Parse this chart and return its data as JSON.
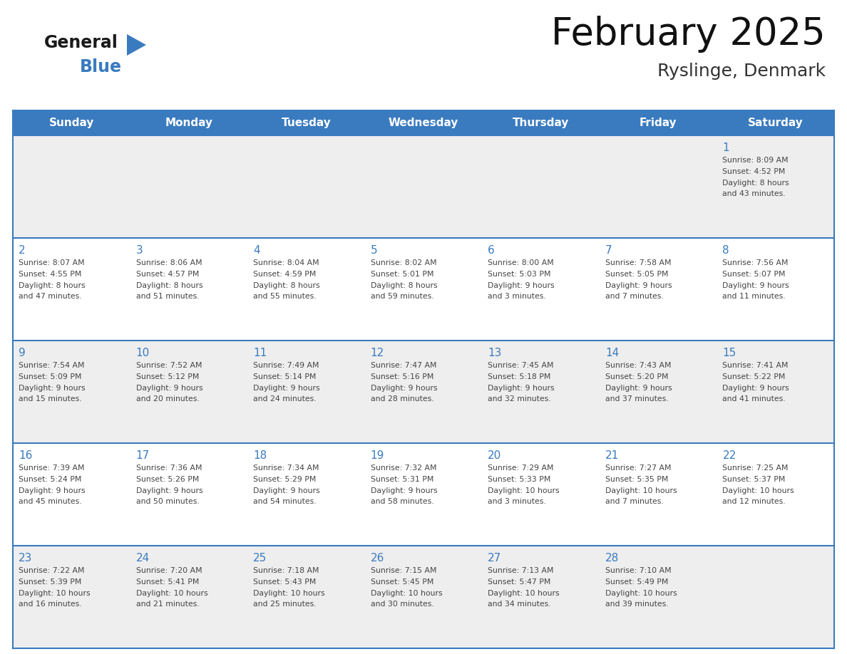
{
  "title": "February 2025",
  "subtitle": "Ryslinge, Denmark",
  "header_color": "#3A7BBF",
  "header_text_color": "#FFFFFF",
  "day_names": [
    "Sunday",
    "Monday",
    "Tuesday",
    "Wednesday",
    "Thursday",
    "Friday",
    "Saturday"
  ],
  "background_color": "#FFFFFF",
  "cell_bg_row0": "#F0F0F0",
  "cell_bg_row1": "#FFFFFF",
  "cell_bg_row2": "#F0F0F0",
  "cell_bg_row3": "#FFFFFF",
  "cell_bg_row4": "#F0F0F0",
  "border_color": "#3A7BBF",
  "date_color": "#3A7BBF",
  "text_color": "#444444",
  "days": [
    {
      "day": 1,
      "col": 6,
      "row": 0,
      "sunrise": "8:09 AM",
      "sunset": "4:52 PM",
      "daylight": "8 hours and 43 minutes."
    },
    {
      "day": 2,
      "col": 0,
      "row": 1,
      "sunrise": "8:07 AM",
      "sunset": "4:55 PM",
      "daylight": "8 hours and 47 minutes."
    },
    {
      "day": 3,
      "col": 1,
      "row": 1,
      "sunrise": "8:06 AM",
      "sunset": "4:57 PM",
      "daylight": "8 hours and 51 minutes."
    },
    {
      "day": 4,
      "col": 2,
      "row": 1,
      "sunrise": "8:04 AM",
      "sunset": "4:59 PM",
      "daylight": "8 hours and 55 minutes."
    },
    {
      "day": 5,
      "col": 3,
      "row": 1,
      "sunrise": "8:02 AM",
      "sunset": "5:01 PM",
      "daylight": "8 hours and 59 minutes."
    },
    {
      "day": 6,
      "col": 4,
      "row": 1,
      "sunrise": "8:00 AM",
      "sunset": "5:03 PM",
      "daylight": "9 hours and 3 minutes."
    },
    {
      "day": 7,
      "col": 5,
      "row": 1,
      "sunrise": "7:58 AM",
      "sunset": "5:05 PM",
      "daylight": "9 hours and 7 minutes."
    },
    {
      "day": 8,
      "col": 6,
      "row": 1,
      "sunrise": "7:56 AM",
      "sunset": "5:07 PM",
      "daylight": "9 hours and 11 minutes."
    },
    {
      "day": 9,
      "col": 0,
      "row": 2,
      "sunrise": "7:54 AM",
      "sunset": "5:09 PM",
      "daylight": "9 hours and 15 minutes."
    },
    {
      "day": 10,
      "col": 1,
      "row": 2,
      "sunrise": "7:52 AM",
      "sunset": "5:12 PM",
      "daylight": "9 hours and 20 minutes."
    },
    {
      "day": 11,
      "col": 2,
      "row": 2,
      "sunrise": "7:49 AM",
      "sunset": "5:14 PM",
      "daylight": "9 hours and 24 minutes."
    },
    {
      "day": 12,
      "col": 3,
      "row": 2,
      "sunrise": "7:47 AM",
      "sunset": "5:16 PM",
      "daylight": "9 hours and 28 minutes."
    },
    {
      "day": 13,
      "col": 4,
      "row": 2,
      "sunrise": "7:45 AM",
      "sunset": "5:18 PM",
      "daylight": "9 hours and 32 minutes."
    },
    {
      "day": 14,
      "col": 5,
      "row": 2,
      "sunrise": "7:43 AM",
      "sunset": "5:20 PM",
      "daylight": "9 hours and 37 minutes."
    },
    {
      "day": 15,
      "col": 6,
      "row": 2,
      "sunrise": "7:41 AM",
      "sunset": "5:22 PM",
      "daylight": "9 hours and 41 minutes."
    },
    {
      "day": 16,
      "col": 0,
      "row": 3,
      "sunrise": "7:39 AM",
      "sunset": "5:24 PM",
      "daylight": "9 hours and 45 minutes."
    },
    {
      "day": 17,
      "col": 1,
      "row": 3,
      "sunrise": "7:36 AM",
      "sunset": "5:26 PM",
      "daylight": "9 hours and 50 minutes."
    },
    {
      "day": 18,
      "col": 2,
      "row": 3,
      "sunrise": "7:34 AM",
      "sunset": "5:29 PM",
      "daylight": "9 hours and 54 minutes."
    },
    {
      "day": 19,
      "col": 3,
      "row": 3,
      "sunrise": "7:32 AM",
      "sunset": "5:31 PM",
      "daylight": "9 hours and 58 minutes."
    },
    {
      "day": 20,
      "col": 4,
      "row": 3,
      "sunrise": "7:29 AM",
      "sunset": "5:33 PM",
      "daylight": "10 hours and 3 minutes."
    },
    {
      "day": 21,
      "col": 5,
      "row": 3,
      "sunrise": "7:27 AM",
      "sunset": "5:35 PM",
      "daylight": "10 hours and 7 minutes."
    },
    {
      "day": 22,
      "col": 6,
      "row": 3,
      "sunrise": "7:25 AM",
      "sunset": "5:37 PM",
      "daylight": "10 hours and 12 minutes."
    },
    {
      "day": 23,
      "col": 0,
      "row": 4,
      "sunrise": "7:22 AM",
      "sunset": "5:39 PM",
      "daylight": "10 hours and 16 minutes."
    },
    {
      "day": 24,
      "col": 1,
      "row": 4,
      "sunrise": "7:20 AM",
      "sunset": "5:41 PM",
      "daylight": "10 hours and 21 minutes."
    },
    {
      "day": 25,
      "col": 2,
      "row": 4,
      "sunrise": "7:18 AM",
      "sunset": "5:43 PM",
      "daylight": "10 hours and 25 minutes."
    },
    {
      "day": 26,
      "col": 3,
      "row": 4,
      "sunrise": "7:15 AM",
      "sunset": "5:45 PM",
      "daylight": "10 hours and 30 minutes."
    },
    {
      "day": 27,
      "col": 4,
      "row": 4,
      "sunrise": "7:13 AM",
      "sunset": "5:47 PM",
      "daylight": "10 hours and 34 minutes."
    },
    {
      "day": 28,
      "col": 5,
      "row": 4,
      "sunrise": "7:10 AM",
      "sunset": "5:49 PM",
      "daylight": "10 hours and 39 minutes."
    }
  ],
  "num_rows": 5,
  "num_cols": 7
}
